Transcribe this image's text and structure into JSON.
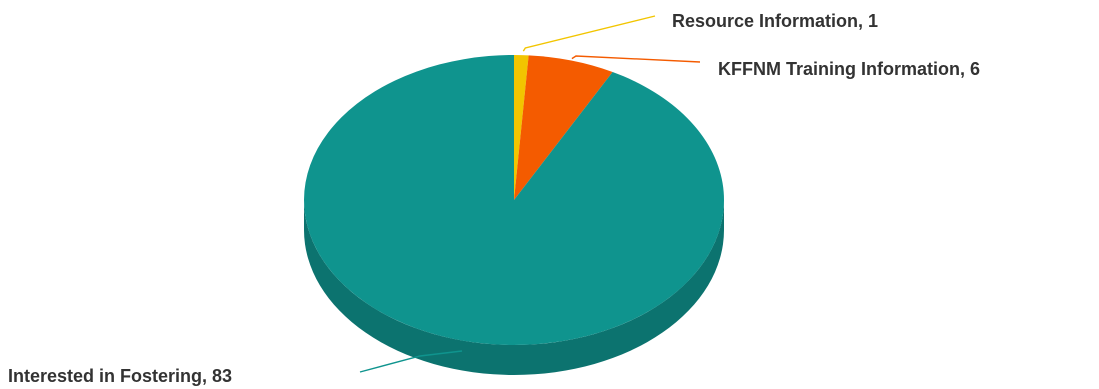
{
  "chart_data": {
    "type": "pie",
    "style": "3d",
    "title": "",
    "slices": [
      {
        "name": "Resource Information",
        "value": 1,
        "label": "Resource Information, 1",
        "color": "#f2c500"
      },
      {
        "name": "KFFNM Training Information",
        "value": 6,
        "label": "KFFNM Training Information, 6",
        "color": "#f45b00"
      },
      {
        "name": "Interested in Fostering",
        "value": 83,
        "label": "Interested in Fostering, 83",
        "color": "#0f948e"
      }
    ],
    "legend": "none",
    "background_color": "#ffffff",
    "label_color": "#333333"
  }
}
